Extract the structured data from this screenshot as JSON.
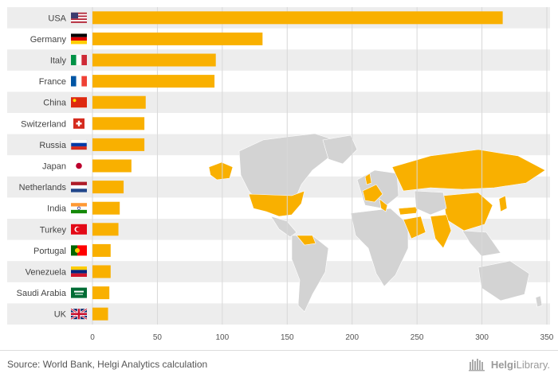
{
  "chart_data": {
    "type": "bar",
    "orientation": "horizontal",
    "categories": [
      "USA",
      "Germany",
      "Italy",
      "France",
      "China",
      "Switzerland",
      "Russia",
      "Japan",
      "Netherlands",
      "India",
      "Turkey",
      "Portugal",
      "Venezuela",
      "Saudi Arabia",
      "UK"
    ],
    "values": [
      316,
      131,
      95,
      94,
      41,
      40,
      40,
      30,
      24,
      21,
      20,
      14,
      14,
      13,
      12
    ],
    "xlim": [
      0,
      350
    ],
    "xticks": [
      0,
      50,
      100,
      150,
      200,
      250,
      300,
      350
    ],
    "grid": true,
    "bar_color": "#F9B000",
    "stripe_color": "#ededed",
    "flags": [
      "flag-usa-icon",
      "flag-germany-icon",
      "flag-italy-icon",
      "flag-france-icon",
      "flag-china-icon",
      "flag-switzerland-icon",
      "flag-russia-icon",
      "flag-japan-icon",
      "flag-netherlands-icon",
      "flag-india-icon",
      "flag-turkey-icon",
      "flag-portugal-icon",
      "flag-venezuela-icon",
      "flag-saudi-arabia-icon",
      "flag-uk-icon"
    ]
  },
  "map": {
    "icon": "world-map-icon",
    "land_color": "#d3d3d3",
    "highlight_color": "#F9B000"
  },
  "footer": {
    "source": "Source: World Bank, Helgi Analytics calculation",
    "brand_prefix": "Helgi",
    "brand_suffix": "Library."
  }
}
